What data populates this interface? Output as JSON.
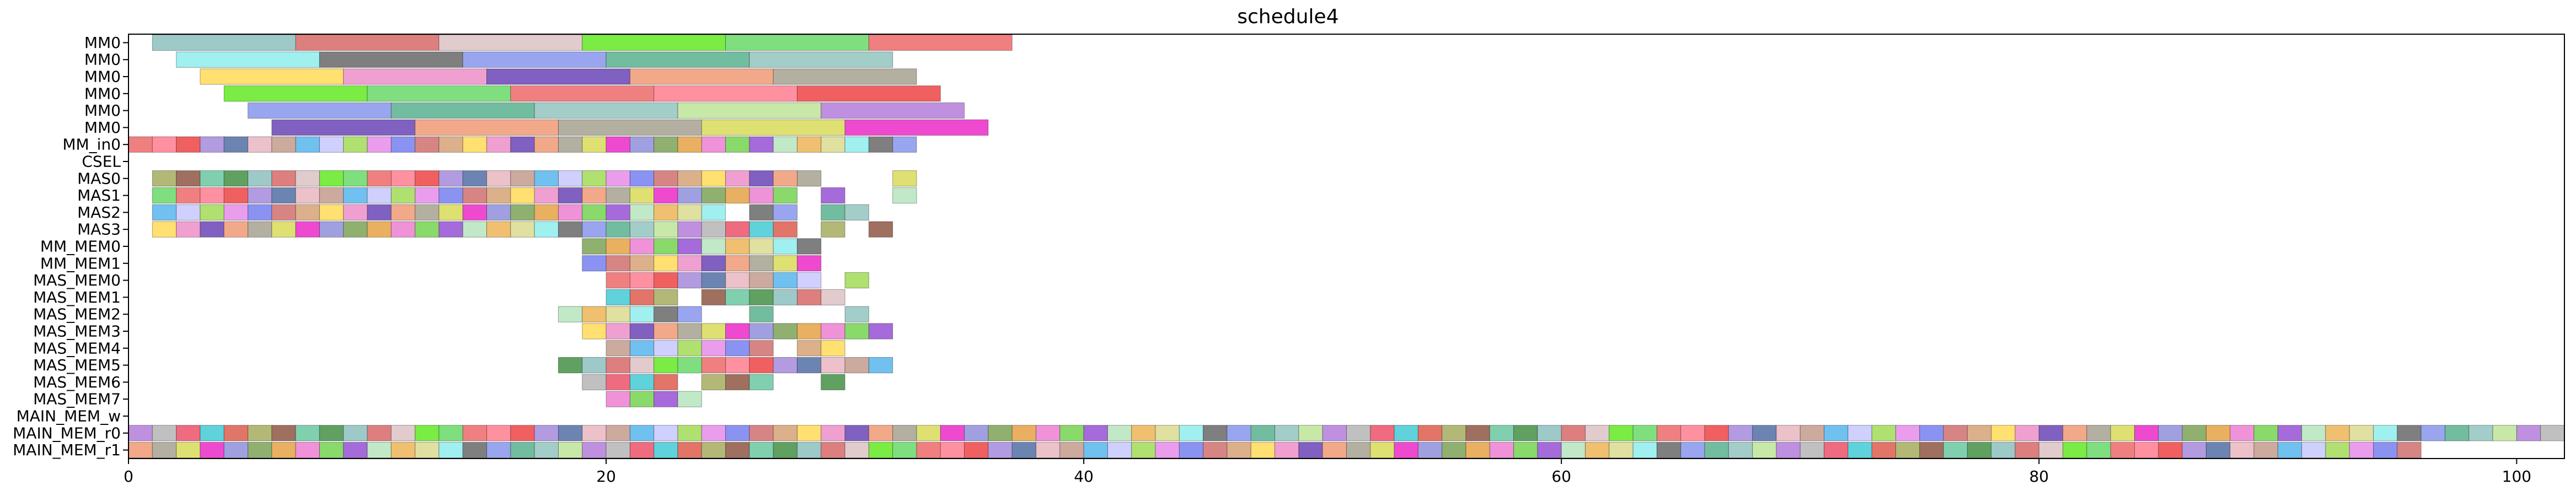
{
  "chart_data": {
    "type": "gantt",
    "title": "schedule4",
    "xlabel": "",
    "ylabel": "",
    "xlim": [
      0,
      102
    ],
    "xticks": [
      0,
      20,
      40,
      60,
      80,
      100
    ],
    "grid": false,
    "rows": [
      "MM0",
      "MM0",
      "MM0",
      "MM0",
      "MM0",
      "MM0",
      "MM_in0",
      "CSEL",
      "MAS0",
      "MAS1",
      "MAS2",
      "MAS3",
      "MM_MEM0",
      "MM_MEM1",
      "MAS_MEM0",
      "MAS_MEM1",
      "MAS_MEM2",
      "MAS_MEM3",
      "MAS_MEM4",
      "MAS_MEM5",
      "MAS_MEM6",
      "MAS_MEM7",
      "MAIN_MEM_w",
      "MAIN_MEM_r0",
      "MAIN_MEM_r1"
    ],
    "series": [
      {
        "row": 0,
        "segments": [
          [
            1,
            7
          ],
          [
            7,
            13
          ],
          [
            13,
            19
          ],
          [
            19,
            25
          ],
          [
            25,
            31
          ],
          [
            31,
            37
          ]
        ]
      },
      {
        "row": 1,
        "segments": [
          [
            2,
            8
          ],
          [
            8,
            14
          ],
          [
            14,
            20
          ],
          [
            20,
            26
          ],
          [
            26,
            32
          ]
        ]
      },
      {
        "row": 2,
        "segments": [
          [
            3,
            9
          ],
          [
            9,
            15
          ],
          [
            15,
            21
          ],
          [
            21,
            27
          ],
          [
            27,
            33
          ]
        ]
      },
      {
        "row": 3,
        "segments": [
          [
            4,
            10
          ],
          [
            10,
            16
          ],
          [
            16,
            22
          ],
          [
            22,
            28
          ],
          [
            28,
            34
          ]
        ]
      },
      {
        "row": 4,
        "segments": [
          [
            5,
            11
          ],
          [
            11,
            17
          ],
          [
            17,
            23
          ],
          [
            23,
            29
          ],
          [
            29,
            35
          ]
        ]
      },
      {
        "row": 5,
        "segments": [
          [
            6,
            12
          ],
          [
            12,
            18
          ],
          [
            18,
            24
          ],
          [
            24,
            30
          ],
          [
            30,
            36
          ]
        ]
      },
      {
        "row": 6,
        "segments": [
          [
            0,
            1
          ],
          [
            1,
            2
          ],
          [
            2,
            3
          ],
          [
            3,
            4
          ],
          [
            4,
            5
          ],
          [
            5,
            6
          ],
          [
            6,
            7
          ],
          [
            7,
            8
          ],
          [
            8,
            9
          ],
          [
            9,
            10
          ],
          [
            10,
            11
          ],
          [
            11,
            12
          ],
          [
            12,
            13
          ],
          [
            13,
            14
          ],
          [
            14,
            15
          ],
          [
            15,
            16
          ],
          [
            16,
            17
          ],
          [
            17,
            18
          ],
          [
            18,
            19
          ],
          [
            19,
            20
          ],
          [
            20,
            21
          ],
          [
            21,
            22
          ],
          [
            22,
            23
          ],
          [
            23,
            24
          ],
          [
            24,
            25
          ],
          [
            25,
            26
          ],
          [
            26,
            27
          ],
          [
            27,
            28
          ],
          [
            28,
            29
          ],
          [
            29,
            30
          ],
          [
            30,
            31
          ],
          [
            31,
            32
          ],
          [
            32,
            33
          ]
        ]
      },
      {
        "row": 7,
        "segments": []
      },
      {
        "row": 8,
        "segments": [
          [
            1,
            2
          ],
          [
            2,
            3
          ],
          [
            3,
            4
          ],
          [
            4,
            5
          ],
          [
            5,
            6
          ],
          [
            6,
            7
          ],
          [
            7,
            8
          ],
          [
            8,
            9
          ],
          [
            9,
            10
          ],
          [
            10,
            11
          ],
          [
            11,
            12
          ],
          [
            12,
            13
          ],
          [
            13,
            14
          ],
          [
            14,
            15
          ],
          [
            15,
            16
          ],
          [
            16,
            17
          ],
          [
            17,
            18
          ],
          [
            18,
            19
          ],
          [
            19,
            20
          ],
          [
            20,
            21
          ],
          [
            21,
            22
          ],
          [
            22,
            23
          ],
          [
            23,
            24
          ],
          [
            24,
            25
          ],
          [
            25,
            26
          ],
          [
            26,
            27
          ],
          [
            27,
            28
          ],
          [
            28,
            29
          ],
          [
            32,
            33
          ]
        ]
      },
      {
        "row": 9,
        "segments": [
          [
            1,
            2
          ],
          [
            2,
            3
          ],
          [
            3,
            4
          ],
          [
            4,
            5
          ],
          [
            5,
            6
          ],
          [
            6,
            7
          ],
          [
            7,
            8
          ],
          [
            8,
            9
          ],
          [
            9,
            10
          ],
          [
            10,
            11
          ],
          [
            11,
            12
          ],
          [
            12,
            13
          ],
          [
            13,
            14
          ],
          [
            14,
            15
          ],
          [
            15,
            16
          ],
          [
            16,
            17
          ],
          [
            17,
            18
          ],
          [
            18,
            19
          ],
          [
            19,
            20
          ],
          [
            20,
            21
          ],
          [
            21,
            22
          ],
          [
            22,
            23
          ],
          [
            23,
            24
          ],
          [
            24,
            25
          ],
          [
            25,
            26
          ],
          [
            26,
            27
          ],
          [
            27,
            28
          ],
          [
            29,
            30
          ],
          [
            32,
            33
          ]
        ]
      },
      {
        "row": 10,
        "segments": [
          [
            1,
            2
          ],
          [
            2,
            3
          ],
          [
            3,
            4
          ],
          [
            4,
            5
          ],
          [
            5,
            6
          ],
          [
            6,
            7
          ],
          [
            7,
            8
          ],
          [
            8,
            9
          ],
          [
            9,
            10
          ],
          [
            10,
            11
          ],
          [
            11,
            12
          ],
          [
            12,
            13
          ],
          [
            13,
            14
          ],
          [
            14,
            15
          ],
          [
            15,
            16
          ],
          [
            16,
            17
          ],
          [
            17,
            18
          ],
          [
            18,
            19
          ],
          [
            19,
            20
          ],
          [
            20,
            21
          ],
          [
            21,
            22
          ],
          [
            22,
            23
          ],
          [
            23,
            24
          ],
          [
            24,
            25
          ],
          [
            26,
            27
          ],
          [
            27,
            28
          ],
          [
            29,
            30
          ],
          [
            30,
            31
          ]
        ]
      },
      {
        "row": 11,
        "segments": [
          [
            1,
            2
          ],
          [
            2,
            3
          ],
          [
            3,
            4
          ],
          [
            4,
            5
          ],
          [
            5,
            6
          ],
          [
            6,
            7
          ],
          [
            7,
            8
          ],
          [
            8,
            9
          ],
          [
            9,
            10
          ],
          [
            10,
            11
          ],
          [
            11,
            12
          ],
          [
            12,
            13
          ],
          [
            13,
            14
          ],
          [
            14,
            15
          ],
          [
            15,
            16
          ],
          [
            16,
            17
          ],
          [
            17,
            18
          ],
          [
            18,
            19
          ],
          [
            19,
            20
          ],
          [
            20,
            21
          ],
          [
            21,
            22
          ],
          [
            22,
            23
          ],
          [
            23,
            24
          ],
          [
            24,
            25
          ],
          [
            25,
            26
          ],
          [
            26,
            27
          ],
          [
            27,
            28
          ],
          [
            29,
            30
          ],
          [
            31,
            32
          ]
        ]
      },
      {
        "row": 12,
        "segments": [
          [
            19,
            20
          ],
          [
            20,
            21
          ],
          [
            21,
            22
          ],
          [
            22,
            23
          ],
          [
            23,
            24
          ],
          [
            24,
            25
          ],
          [
            25,
            26
          ],
          [
            26,
            27
          ],
          [
            27,
            28
          ],
          [
            28,
            29
          ]
        ]
      },
      {
        "row": 13,
        "segments": [
          [
            19,
            20
          ],
          [
            20,
            21
          ],
          [
            21,
            22
          ],
          [
            22,
            23
          ],
          [
            23,
            24
          ],
          [
            24,
            25
          ],
          [
            25,
            26
          ],
          [
            26,
            27
          ],
          [
            27,
            28
          ],
          [
            28,
            29
          ]
        ]
      },
      {
        "row": 14,
        "segments": [
          [
            20,
            21
          ],
          [
            21,
            22
          ],
          [
            22,
            23
          ],
          [
            23,
            24
          ],
          [
            24,
            25
          ],
          [
            25,
            26
          ],
          [
            26,
            27
          ],
          [
            27,
            28
          ],
          [
            28,
            29
          ],
          [
            30,
            31
          ]
        ]
      },
      {
        "row": 15,
        "segments": [
          [
            20,
            21
          ],
          [
            21,
            22
          ],
          [
            22,
            23
          ],
          [
            24,
            25
          ],
          [
            25,
            26
          ],
          [
            26,
            27
          ],
          [
            27,
            28
          ],
          [
            28,
            29
          ],
          [
            29,
            30
          ]
        ]
      },
      {
        "row": 16,
        "segments": [
          [
            18,
            19
          ],
          [
            19,
            20
          ],
          [
            20,
            21
          ],
          [
            21,
            22
          ],
          [
            22,
            23
          ],
          [
            23,
            24
          ],
          [
            26,
            27
          ],
          [
            30,
            31
          ]
        ]
      },
      {
        "row": 17,
        "segments": [
          [
            19,
            20
          ],
          [
            20,
            21
          ],
          [
            21,
            22
          ],
          [
            22,
            23
          ],
          [
            23,
            24
          ],
          [
            24,
            25
          ],
          [
            25,
            26
          ],
          [
            26,
            27
          ],
          [
            27,
            28
          ],
          [
            28,
            29
          ],
          [
            29,
            30
          ],
          [
            30,
            31
          ],
          [
            31,
            32
          ]
        ]
      },
      {
        "row": 18,
        "segments": [
          [
            20,
            21
          ],
          [
            21,
            22
          ],
          [
            22,
            23
          ],
          [
            23,
            24
          ],
          [
            24,
            25
          ],
          [
            25,
            26
          ],
          [
            26,
            27
          ],
          [
            28,
            29
          ],
          [
            29,
            30
          ]
        ]
      },
      {
        "row": 19,
        "segments": [
          [
            18,
            19
          ],
          [
            19,
            20
          ],
          [
            20,
            21
          ],
          [
            21,
            22
          ],
          [
            22,
            23
          ],
          [
            23,
            24
          ],
          [
            24,
            25
          ],
          [
            25,
            26
          ],
          [
            26,
            27
          ],
          [
            27,
            28
          ],
          [
            28,
            29
          ],
          [
            29,
            30
          ],
          [
            30,
            31
          ],
          [
            31,
            32
          ]
        ]
      },
      {
        "row": 20,
        "segments": [
          [
            19,
            20
          ],
          [
            20,
            21
          ],
          [
            21,
            22
          ],
          [
            22,
            23
          ],
          [
            24,
            25
          ],
          [
            25,
            26
          ],
          [
            26,
            27
          ],
          [
            29,
            30
          ]
        ]
      },
      {
        "row": 21,
        "segments": [
          [
            20,
            21
          ],
          [
            21,
            22
          ],
          [
            22,
            23
          ],
          [
            23,
            24
          ]
        ]
      },
      {
        "row": 22,
        "segments": []
      },
      {
        "row": 23,
        "segments": "unit_0_102"
      },
      {
        "row": 24,
        "segments": "unit_0_96"
      }
    ],
    "palette": [
      "#9ec9c9",
      "#ef6b80",
      "#7f7f7f",
      "#ef92d8",
      "#f2a98a",
      "#eb9ded",
      "#b29be0",
      "#dd7f7f",
      "#5fd2dc",
      "#99a6ef",
      "#89d96b",
      "#b3b0a2",
      "#8a93f2",
      "#6b84b2",
      "#e2cbcd",
      "#e27568",
      "#72bca0",
      "#a56bdb",
      "#dfe072",
      "#d78584",
      "#ecc1c9",
      "#7aec43",
      "#b4b876",
      "#a3cdc9",
      "#c1e9c7",
      "#ee4ad0",
      "#dcb08b",
      "#ccaa9e",
      "#7fdf7f",
      "#9f6f5f",
      "#c8e8a8",
      "#f0c070",
      "#a0a0e0",
      "#ffe070",
      "#70c0f0",
      "#f08080",
      "#80d0b0",
      "#c090e0",
      "#e0e0a0",
      "#90b070",
      "#f0a0d0",
      "#d0d0ff",
      "#ff90a0",
      "#60a060",
      "#c0c0c0",
      "#a0f0f0",
      "#e8b060",
      "#8060c0",
      "#b0e070",
      "#f06060"
    ]
  }
}
